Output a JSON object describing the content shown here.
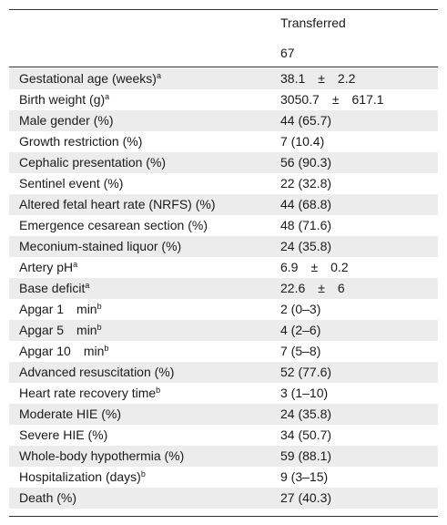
{
  "table": {
    "column_header": "Transferred",
    "column_count": "67",
    "rows": [
      {
        "label": "Gestational age (weeks)",
        "sup": "a",
        "value": "38.1 ± 2.2"
      },
      {
        "label": "Birth weight (g)",
        "sup": "a",
        "value": "3050.7 ± 617.1"
      },
      {
        "label": "Male gender (%)",
        "sup": "",
        "value": "44 (65.7)"
      },
      {
        "label": "Growth restriction (%)",
        "sup": "",
        "value": "7 (10.4)"
      },
      {
        "label": "Cephalic presentation (%)",
        "sup": "",
        "value": "56 (90.3)"
      },
      {
        "label": "Sentinel event (%)",
        "sup": "",
        "value": "22 (32.8)"
      },
      {
        "label": "Altered fetal heart rate (NRFS) (%)",
        "sup": "",
        "value": "44 (68.8)"
      },
      {
        "label": "Emergence cesarean section (%)",
        "sup": "",
        "value": "48 (71.6)"
      },
      {
        "label": "Meconium-stained liquor (%)",
        "sup": "",
        "value": "24 (35.8)"
      },
      {
        "label": "Artery pH",
        "sup": "a",
        "value": "6.9 ± 0.2"
      },
      {
        "label": "Base deficit",
        "sup": "a",
        "value": "22.6 ± 6"
      },
      {
        "label": "Apgar 1 min",
        "sup": "b",
        "value": "2 (0–3)"
      },
      {
        "label": "Apgar 5 min",
        "sup": "b",
        "value": "4 (2–6)"
      },
      {
        "label": "Apgar 10 min",
        "sup": "b",
        "value": "7 (5–8)"
      },
      {
        "label": "Advanced resuscitation (%)",
        "sup": "",
        "value": "52 (77.6)"
      },
      {
        "label": "Heart rate recovery time",
        "sup": "b",
        "value": "3 (1–10)"
      },
      {
        "label": "Moderate HIE (%)",
        "sup": "",
        "value": "24 (35.8)"
      },
      {
        "label": "Severe HIE (%)",
        "sup": "",
        "value": "34 (50.7)"
      },
      {
        "label": "Whole-body hypothermia (%)",
        "sup": "",
        "value": "59 (88.1)"
      },
      {
        "label": "Hospitalization (days)",
        "sup": "b",
        "value": "9 (3–15)"
      },
      {
        "label": "Death (%)",
        "sup": "",
        "value": "27 (40.3)"
      }
    ]
  }
}
